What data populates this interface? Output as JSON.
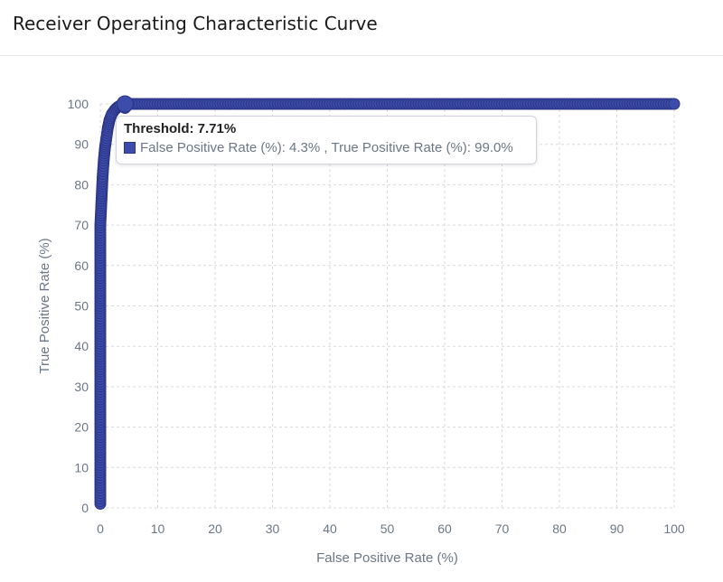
{
  "header": {
    "title": "Receiver Operating Characteristic Curve"
  },
  "tooltip": {
    "title": "Threshold: 7.71%",
    "text": "False Positive Rate (%): 4.3% , True Positive Rate (%): 99.0%"
  },
  "colors": {
    "series": "#3d4bab",
    "series_stroke": "#2b3585",
    "grid": "#d9d9d9",
    "axis_text": "#6b7785"
  },
  "chart_data": {
    "type": "scatter",
    "title": "",
    "xlabel": "False Positive Rate (%)",
    "ylabel": "True Positive Rate (%)",
    "xlim": [
      0,
      100
    ],
    "ylim": [
      0,
      100
    ],
    "x_ticks": [
      "0",
      "10",
      "20",
      "30",
      "40",
      "50",
      "60",
      "70",
      "80",
      "90",
      "100"
    ],
    "y_ticks": [
      "0",
      "10",
      "20",
      "30",
      "40",
      "50",
      "60",
      "70",
      "80",
      "90",
      "100"
    ],
    "grid": true,
    "legend": "none",
    "series": [
      {
        "x": [
          0,
          0,
          0,
          0,
          0,
          0,
          0,
          0,
          0,
          0,
          0,
          0,
          0,
          0,
          0,
          0.1,
          0.2,
          0.3,
          0.4,
          0.5,
          0.6,
          0.8,
          1.0,
          1.3,
          1.6,
          2.0,
          2.5,
          3.0,
          3.5,
          4.3,
          5,
          10,
          20,
          30,
          40,
          50,
          60,
          70,
          80,
          90,
          100
        ],
        "y": [
          1,
          5,
          10,
          15,
          20,
          25,
          30,
          35,
          40,
          45,
          50,
          55,
          60,
          65,
          70,
          73,
          76,
          79,
          82,
          84,
          86,
          89,
          91,
          94,
          96,
          97.5,
          98.5,
          99.2,
          99.6,
          99.0,
          100,
          100,
          100,
          100,
          100,
          100,
          100,
          100,
          100,
          100,
          100
        ]
      }
    ],
    "highlight": {
      "x": 4.3,
      "y": 99.0
    }
  }
}
